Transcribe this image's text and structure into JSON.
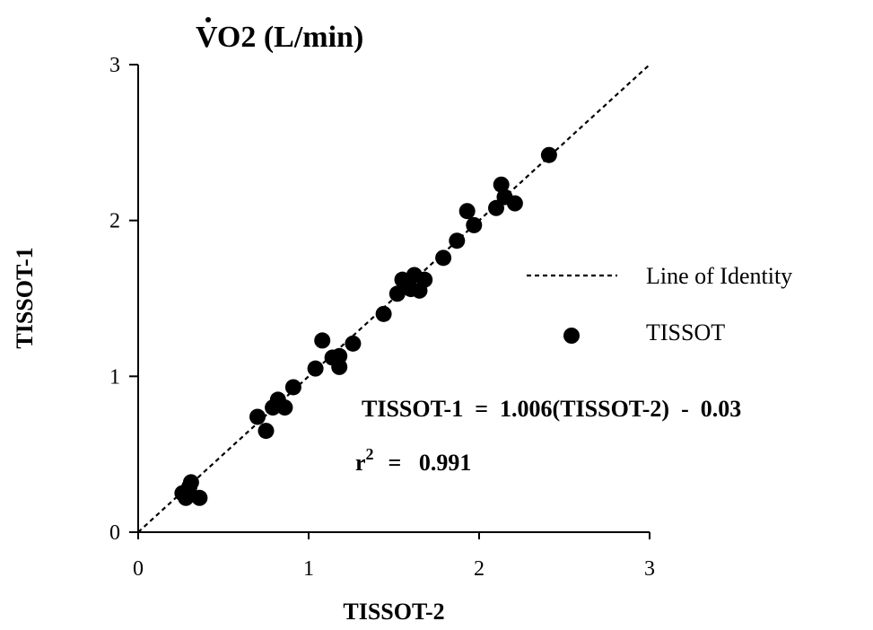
{
  "chart_data": {
    "type": "scatter",
    "title_prefix": "V",
    "title": "O2  (L/min)",
    "xlabel": "TISSOT-2",
    "ylabel": "TISSOT-1",
    "xlim": [
      0,
      3
    ],
    "ylim": [
      0,
      3
    ],
    "xticks": [
      0,
      1,
      2,
      3
    ],
    "yticks": [
      0,
      1,
      2,
      3
    ],
    "xtick_labels": [
      "0",
      "1",
      "2",
      "3"
    ],
    "ytick_labels": [
      "0",
      "1",
      "2",
      "3"
    ],
    "grid": false,
    "legend_position": "right",
    "legend": [
      {
        "label": "Line of Identity",
        "kind": "dashed-line"
      },
      {
        "label": "TISSOT",
        "kind": "marker"
      }
    ],
    "identity_line": {
      "x": [
        0,
        3
      ],
      "y": [
        0,
        3
      ]
    },
    "annotations": {
      "equation": "TISSOT-1  =  1.006(TISSOT-2)  -  0.03",
      "r2_label": "r",
      "r2_exp": "2",
      "r2_value": "=   0.991"
    },
    "series": [
      {
        "name": "TISSOT",
        "points": [
          [
            0.26,
            0.25
          ],
          [
            0.28,
            0.22
          ],
          [
            0.3,
            0.29
          ],
          [
            0.31,
            0.32
          ],
          [
            0.36,
            0.22
          ],
          [
            0.7,
            0.74
          ],
          [
            0.75,
            0.65
          ],
          [
            0.79,
            0.8
          ],
          [
            0.82,
            0.85
          ],
          [
            0.86,
            0.8
          ],
          [
            0.91,
            0.93
          ],
          [
            1.04,
            1.05
          ],
          [
            1.08,
            1.23
          ],
          [
            1.14,
            1.12
          ],
          [
            1.18,
            1.06
          ],
          [
            1.18,
            1.13
          ],
          [
            1.26,
            1.21
          ],
          [
            1.44,
            1.4
          ],
          [
            1.52,
            1.53
          ],
          [
            1.55,
            1.62
          ],
          [
            1.6,
            1.56
          ],
          [
            1.62,
            1.65
          ],
          [
            1.65,
            1.55
          ],
          [
            1.68,
            1.62
          ],
          [
            1.79,
            1.76
          ],
          [
            1.87,
            1.87
          ],
          [
            1.93,
            2.06
          ],
          [
            1.97,
            1.97
          ],
          [
            2.1,
            2.08
          ],
          [
            2.13,
            2.23
          ],
          [
            2.15,
            2.15
          ],
          [
            2.21,
            2.11
          ],
          [
            2.41,
            2.42
          ]
        ]
      }
    ]
  }
}
